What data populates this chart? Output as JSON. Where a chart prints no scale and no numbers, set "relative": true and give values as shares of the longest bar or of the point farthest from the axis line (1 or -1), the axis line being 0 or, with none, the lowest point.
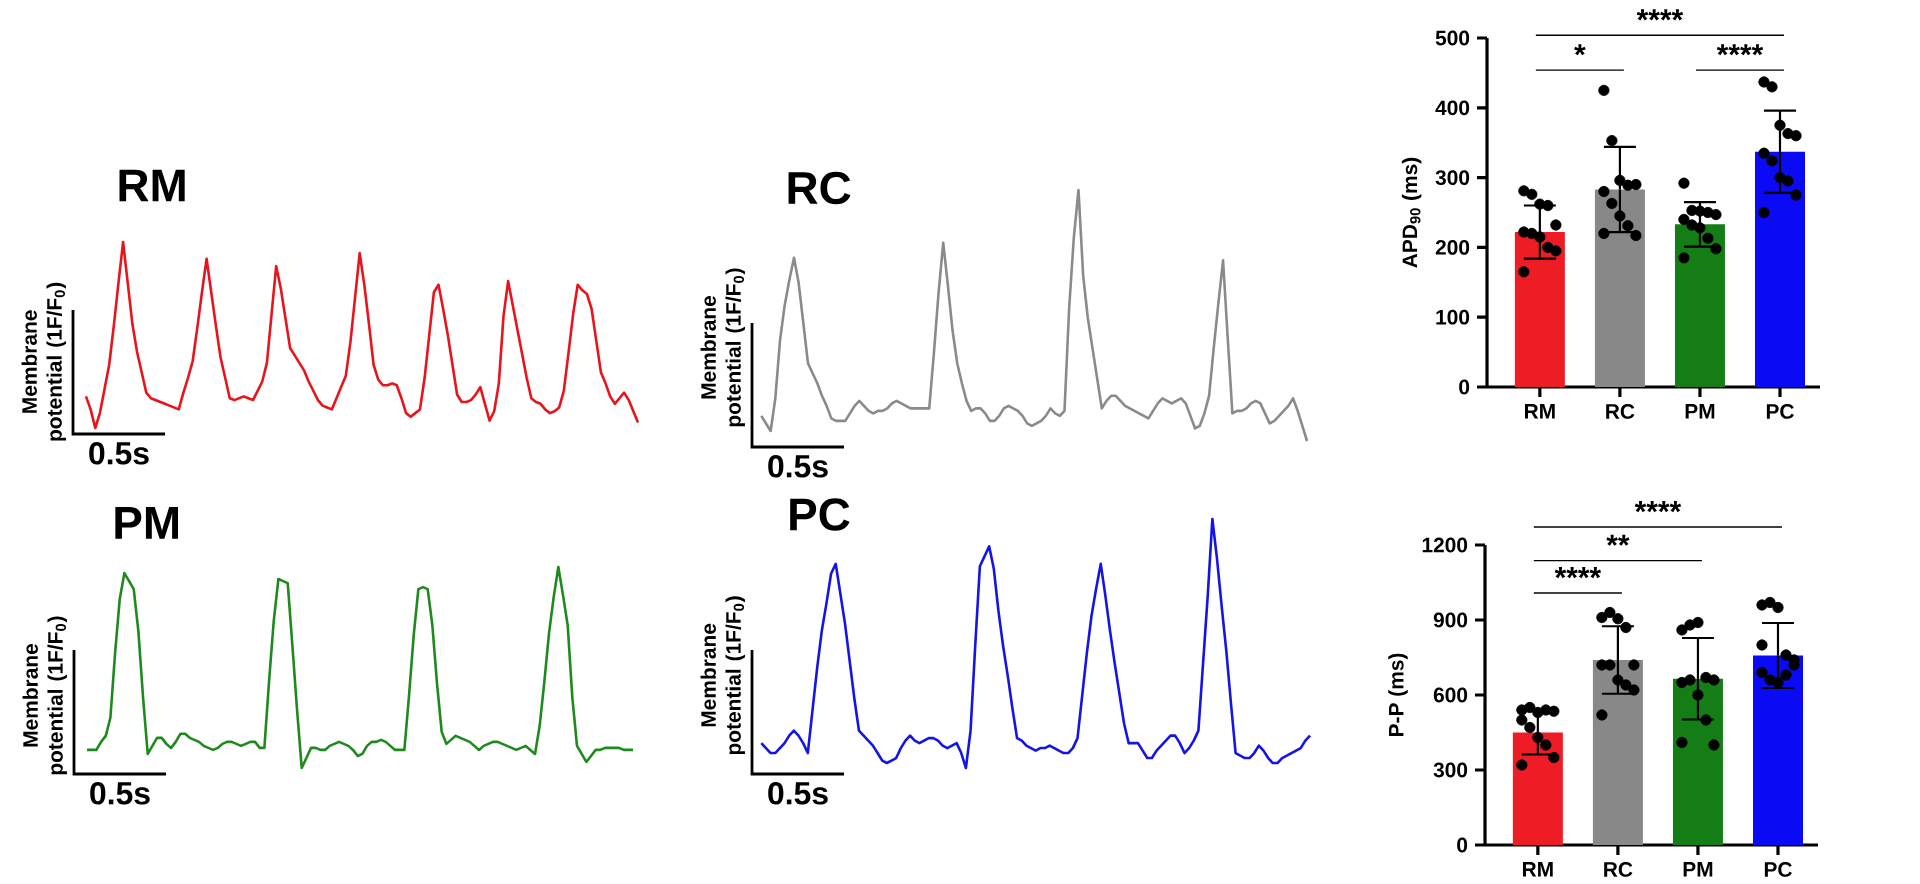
{
  "chart_data": [
    {
      "type": "line",
      "title": "RM",
      "ylabel": "Membrane potential (1F/F$_{0}$)",
      "relative": true,
      "categories": [
        null,
        null,
        null,
        null,
        null,
        null,
        null,
        null,
        null,
        null,
        null,
        null,
        null,
        null,
        null,
        null,
        null,
        null,
        null,
        null,
        null,
        null,
        null,
        null,
        null,
        null,
        null,
        null,
        null,
        null,
        null,
        null,
        null,
        null,
        null,
        null,
        null,
        null,
        null,
        null,
        null,
        null,
        null,
        null,
        null,
        null,
        null,
        null,
        null,
        null,
        null,
        null,
        null,
        null,
        null,
        null,
        null,
        null,
        null,
        null,
        null,
        null,
        null,
        null,
        null,
        null,
        null,
        null,
        null,
        null,
        null,
        null,
        null,
        null,
        null,
        null,
        null,
        null,
        null,
        null,
        null,
        null,
        null,
        null,
        null,
        null,
        null,
        null,
        null,
        null,
        null,
        null,
        null,
        null,
        null,
        null,
        null,
        null,
        null,
        null,
        null,
        null,
        null,
        null,
        null,
        null,
        null,
        null,
        null,
        null,
        null,
        null,
        null,
        null,
        null,
        null,
        null,
        null,
        null,
        null
      ],
      "series": [
        {
          "color": "#e8141c",
          "values": [
            0.17,
            0.1,
            0,
            0.08,
            0.21,
            0.34,
            0.55,
            0.78,
            1,
            0.78,
            0.56,
            0.41,
            0.3,
            0.19,
            0.16,
            0.15,
            0.14,
            0.13,
            0.12,
            0.11,
            0.1,
            0.19,
            0.27,
            0.36,
            0.54,
            0.73,
            0.91,
            0.73,
            0.55,
            0.38,
            0.27,
            0.16,
            0.15,
            0.16,
            0.17,
            0.16,
            0.15,
            0.2,
            0.25,
            0.35,
            0.61,
            0.87,
            0.75,
            0.59,
            0.43,
            0.39,
            0.35,
            0.31,
            0.25,
            0.2,
            0.15,
            0.12,
            0.11,
            0.1,
            0.16,
            0.22,
            0.28,
            0.46,
            0.7,
            0.94,
            0.77,
            0.56,
            0.34,
            0.26,
            0.23,
            0.23,
            0.24,
            0.23,
            0.16,
            0.08,
            0.06,
            0.08,
            0.1,
            0.27,
            0.5,
            0.73,
            0.77,
            0.64,
            0.5,
            0.34,
            0.18,
            0.14,
            0.14,
            0.15,
            0.18,
            0.22,
            0.13,
            0.04,
            0.09,
            0.24,
            0.6,
            0.79,
            0.66,
            0.53,
            0.4,
            0.27,
            0.16,
            0.14,
            0.13,
            0.1,
            0.08,
            0.09,
            0.11,
            0.2,
            0.4,
            0.61,
            0.77,
            0.74,
            0.72,
            0.64,
            0.47,
            0.3,
            0.24,
            0.17,
            0.13,
            0.16,
            0.19,
            0.15,
            0.09,
            0.03
          ]
        }
      ],
      "annotations": [
        "0.5s"
      ]
    },
    {
      "type": "line",
      "title": "RC",
      "ylabel": "Membrane potential (1F/F$_{0}$)",
      "relative": true,
      "categories": [
        null,
        null,
        null,
        null,
        null,
        null,
        null,
        null,
        null,
        null,
        null,
        null,
        null,
        null,
        null,
        null,
        null,
        null,
        null,
        null,
        null,
        null,
        null,
        null,
        null,
        null,
        null,
        null,
        null,
        null,
        null,
        null,
        null,
        null,
        null,
        null,
        null,
        null,
        null,
        null,
        null,
        null,
        null,
        null,
        null,
        null,
        null,
        null,
        null,
        null,
        null,
        null,
        null,
        null,
        null,
        null,
        null,
        null,
        null,
        null,
        null,
        null,
        null,
        null,
        null,
        null,
        null,
        null,
        null,
        null,
        null,
        null,
        null,
        null,
        null,
        null,
        null,
        null,
        null,
        null,
        null,
        null,
        null,
        null,
        null,
        null,
        null,
        null,
        null,
        null,
        null,
        null,
        null,
        null,
        null,
        null,
        null,
        null,
        null,
        null,
        null,
        null,
        null,
        null,
        null,
        null,
        null,
        null,
        null,
        null,
        null,
        null,
        null,
        null,
        null,
        null,
        null,
        null
      ],
      "series": [
        {
          "color": "#8a8a8a",
          "values": [
            0.1,
            0.07,
            0.04,
            0.17,
            0.4,
            0.54,
            0.64,
            0.73,
            0.63,
            0.47,
            0.31,
            0.27,
            0.23,
            0.18,
            0.14,
            0.09,
            0.08,
            0.08,
            0.08,
            0.11,
            0.14,
            0.16,
            0.14,
            0.12,
            0.11,
            0.12,
            0.12,
            0.13,
            0.15,
            0.16,
            0.15,
            0.14,
            0.13,
            0.13,
            0.13,
            0.13,
            0.13,
            0.35,
            0.59,
            0.79,
            0.62,
            0.44,
            0.31,
            0.23,
            0.16,
            0.12,
            0.13,
            0.13,
            0.11,
            0.08,
            0.08,
            0.1,
            0.13,
            0.14,
            0.13,
            0.12,
            0.1,
            0.07,
            0.06,
            0.07,
            0.08,
            0.1,
            0.13,
            0.11,
            0.1,
            0.12,
            0.53,
            0.81,
            1,
            0.66,
            0.49,
            0.37,
            0.25,
            0.13,
            0.16,
            0.18,
            0.18,
            0.16,
            0.14,
            0.13,
            0.12,
            0.11,
            0.1,
            0.09,
            0.12,
            0.15,
            0.17,
            0.16,
            0.15,
            0.16,
            0.17,
            0.15,
            0.1,
            0.05,
            0.06,
            0.11,
            0.18,
            0.37,
            0.55,
            0.72,
            0.41,
            0.11,
            0.12,
            0.12,
            0.13,
            0.15,
            0.16,
            0.15,
            0.11,
            0.07,
            0.08,
            0.1,
            0.12,
            0.14,
            0.17,
            0.12,
            0.06,
            0
          ]
        }
      ],
      "annotations": [
        "0.5s"
      ]
    },
    {
      "type": "line",
      "title": "PM",
      "ylabel": "Membrane potential (1F/F$_{0}$)",
      "relative": true,
      "categories": [
        null,
        null,
        null,
        null,
        null,
        null,
        null,
        null,
        null,
        null,
        null,
        null,
        null,
        null,
        null,
        null,
        null,
        null,
        null,
        null,
        null,
        null,
        null,
        null,
        null,
        null,
        null,
        null,
        null,
        null,
        null,
        null,
        null,
        null,
        null,
        null,
        null,
        null,
        null,
        null,
        null,
        null,
        null,
        null,
        null,
        null,
        null,
        null,
        null,
        null,
        null,
        null,
        null,
        null,
        null,
        null,
        null,
        null,
        null,
        null,
        null,
        null,
        null,
        null,
        null,
        null,
        null,
        null,
        null,
        null,
        null,
        null,
        null,
        null,
        null,
        null,
        null,
        null,
        null,
        null,
        null,
        null,
        null,
        null,
        null,
        null,
        null,
        null,
        null,
        null,
        null,
        null,
        null,
        null,
        null,
        null,
        null,
        null,
        null,
        null,
        null,
        null,
        null,
        null,
        null,
        null,
        null,
        null,
        null,
        null,
        null,
        null,
        null,
        null,
        null,
        null,
        null,
        null
      ],
      "series": [
        {
          "color": "#1e8a1e",
          "values": [
            0.09,
            0.09,
            0.09,
            0.13,
            0.16,
            0.25,
            0.57,
            0.84,
            0.97,
            0.93,
            0.89,
            0.68,
            0.35,
            0.07,
            0.11,
            0.15,
            0.15,
            0.12,
            0.1,
            0.13,
            0.17,
            0.17,
            0.15,
            0.14,
            0.13,
            0.11,
            0.1,
            0.09,
            0.1,
            0.12,
            0.13,
            0.13,
            0.12,
            0.11,
            0.12,
            0.13,
            0.13,
            0.1,
            0.1,
            0.43,
            0.73,
            0.94,
            0.93,
            0.92,
            0.61,
            0.29,
            0,
            0.05,
            0.1,
            0.1,
            0.09,
            0.09,
            0.11,
            0.12,
            0.13,
            0.12,
            0.11,
            0.09,
            0.06,
            0.07,
            0.11,
            0.13,
            0.13,
            0.14,
            0.13,
            0.11,
            0.09,
            0.09,
            0.09,
            0.36,
            0.66,
            0.89,
            0.9,
            0.89,
            0.71,
            0.42,
            0.18,
            0.12,
            0.14,
            0.16,
            0.15,
            0.14,
            0.13,
            0.11,
            0.09,
            0.11,
            0.12,
            0.13,
            0.13,
            0.12,
            0.11,
            0.1,
            0.09,
            0.1,
            0.11,
            0.09,
            0.07,
            0.21,
            0.43,
            0.67,
            0.85,
            1,
            0.86,
            0.71,
            0.35,
            0.11,
            0.07,
            0.03,
            0.06,
            0.09,
            0.09,
            0.1,
            0.1,
            0.1,
            0.1,
            0.09,
            0.09,
            0.09
          ]
        }
      ],
      "annotations": [
        "0.5s"
      ]
    },
    {
      "type": "line",
      "title": "PC",
      "ylabel": "Membrane potential (1F/F$_{0}$)",
      "relative": true,
      "categories": [
        null,
        null,
        null,
        null,
        null,
        null,
        null,
        null,
        null,
        null,
        null,
        null,
        null,
        null,
        null,
        null,
        null,
        null,
        null,
        null,
        null,
        null,
        null,
        null,
        null,
        null,
        null,
        null,
        null,
        null,
        null,
        null,
        null,
        null,
        null,
        null,
        null,
        null,
        null,
        null,
        null,
        null,
        null,
        null,
        null,
        null,
        null,
        null,
        null,
        null,
        null,
        null,
        null,
        null,
        null,
        null,
        null,
        null,
        null,
        null,
        null,
        null,
        null,
        null,
        null,
        null,
        null,
        null,
        null,
        null,
        null,
        null,
        null,
        null,
        null,
        null,
        null,
        null,
        null,
        null,
        null,
        null,
        null,
        null,
        null,
        null,
        null,
        null,
        null,
        null,
        null,
        null,
        null,
        null,
        null,
        null,
        null,
        null,
        null,
        null,
        null,
        null,
        null,
        null,
        null,
        null,
        null,
        null,
        null,
        null,
        null,
        null,
        null,
        null,
        null,
        null,
        null,
        null,
        null
      ],
      "series": [
        {
          "color": "#1414e6",
          "values": [
            0.1,
            0.08,
            0.06,
            0.06,
            0.08,
            0.1,
            0.13,
            0.15,
            0.13,
            0.1,
            0.06,
            0.23,
            0.4,
            0.55,
            0.66,
            0.78,
            0.82,
            0.7,
            0.58,
            0.43,
            0.28,
            0.15,
            0.13,
            0.11,
            0.09,
            0.06,
            0.03,
            0.02,
            0.03,
            0.04,
            0.08,
            0.11,
            0.13,
            0.11,
            0.1,
            0.11,
            0.12,
            0.12,
            0.11,
            0.09,
            0.08,
            0.09,
            0.1,
            0.06,
            0,
            0.15,
            0.49,
            0.81,
            0.85,
            0.89,
            0.8,
            0.63,
            0.49,
            0.37,
            0.24,
            0.12,
            0.11,
            0.09,
            0.08,
            0.07,
            0.08,
            0.08,
            0.09,
            0.08,
            0.07,
            0.06,
            0.06,
            0.08,
            0.12,
            0.29,
            0.46,
            0.61,
            0.72,
            0.82,
            0.69,
            0.55,
            0.42,
            0.3,
            0.18,
            0.1,
            0.1,
            0.1,
            0.07,
            0.04,
            0.04,
            0.07,
            0.09,
            0.11,
            0.13,
            0.13,
            0.1,
            0.06,
            0.08,
            0.11,
            0.15,
            0.42,
            0.69,
            1,
            0.84,
            0.65,
            0.47,
            0.26,
            0.06,
            0.05,
            0.04,
            0.04,
            0.06,
            0.09,
            0.07,
            0.04,
            0.02,
            0.02,
            0.04,
            0.05,
            0.06,
            0.07,
            0.08,
            0.11,
            0.13
          ]
        }
      ],
      "annotations": [
        "0.5s"
      ]
    },
    {
      "type": "bar",
      "ylabel": "APD$_{90}$ (ms)",
      "categories": [
        "RM",
        "RC",
        "PM",
        "PC"
      ],
      "ylim": [
        0,
        500
      ],
      "yticks": [
        0,
        100,
        200,
        300,
        400,
        500
      ],
      "values": [
        222,
        283,
        233,
        337
      ],
      "errors": [
        38,
        61,
        32,
        59
      ],
      "colors": [
        "#ee1c24",
        "#888888",
        "#157d15",
        "#0a0af5"
      ],
      "marker": "circle",
      "series": [
        {
          "type": "scatter",
          "color": "#000000",
          "x": [
            "RM",
            "RM",
            "RM",
            "RM",
            "RM",
            "RM",
            "RM",
            "RM",
            "RM",
            "RM",
            "RM",
            "RC",
            "RC",
            "RC",
            "RC",
            "RC",
            "RC",
            "RC",
            "RC",
            "RC",
            "RC",
            "RC",
            "PM",
            "PM",
            "PM",
            "PM",
            "PM",
            "PM",
            "PM",
            "PM",
            "PM",
            "PM",
            "PM",
            "PC",
            "PC",
            "PC",
            "PC",
            "PC",
            "PC",
            "PC",
            "PC",
            "PC",
            "PC",
            "PC"
          ],
          "values": [
            281,
            276,
            262,
            260,
            232,
            222,
            220,
            215,
            200,
            195,
            165,
            425,
            353,
            296,
            289,
            290,
            280,
            263,
            245,
            231,
            217,
            220,
            292,
            253,
            252,
            250,
            247,
            240,
            232,
            228,
            213,
            198,
            185,
            437,
            430,
            375,
            363,
            360,
            335,
            324,
            300,
            295,
            275,
            250
          ]
        }
      ],
      "annotations": [
        "****",
        "*",
        "****"
      ]
    },
    {
      "type": "bar",
      "ylabel": "P-P (ms)",
      "categories": [
        "RM",
        "RC",
        "PM",
        "PC"
      ],
      "ylim": [
        0,
        1200
      ],
      "yticks": [
        0,
        300,
        600,
        900,
        1200
      ],
      "values": [
        450,
        740,
        665,
        758
      ],
      "errors": [
        88,
        135,
        163,
        130
      ],
      "colors": [
        "#ee1c24",
        "#888888",
        "#157d15",
        "#0a0af5"
      ],
      "marker": "circle",
      "series": [
        {
          "type": "scatter",
          "color": "#000000",
          "x": [
            "RM",
            "RM",
            "RM",
            "RM",
            "RM",
            "RM",
            "RM",
            "RM",
            "RM",
            "RM",
            "RM",
            "RC",
            "RC",
            "RC",
            "RC",
            "RC",
            "RC",
            "RC",
            "RC",
            "RC",
            "RC",
            "RC",
            "PM",
            "PM",
            "PM",
            "PM",
            "PM",
            "PM",
            "PM",
            "PM",
            "PM",
            "PM",
            "PM",
            "PC",
            "PC",
            "PC",
            "PC",
            "PC",
            "PC",
            "PC",
            "PC",
            "PC",
            "PC",
            "PC"
          ],
          "values": [
            540,
            550,
            530,
            540,
            535,
            500,
            470,
            430,
            400,
            350,
            320,
            910,
            930,
            905,
            870,
            720,
            720,
            720,
            660,
            640,
            620,
            520,
            860,
            880,
            890,
            670,
            660,
            650,
            660,
            600,
            500,
            400,
            410,
            960,
            970,
            950,
            760,
            720,
            690,
            660,
            650,
            680,
            740,
            800
          ]
        }
      ],
      "annotations": [
        "****",
        "**",
        "****"
      ]
    }
  ]
}
